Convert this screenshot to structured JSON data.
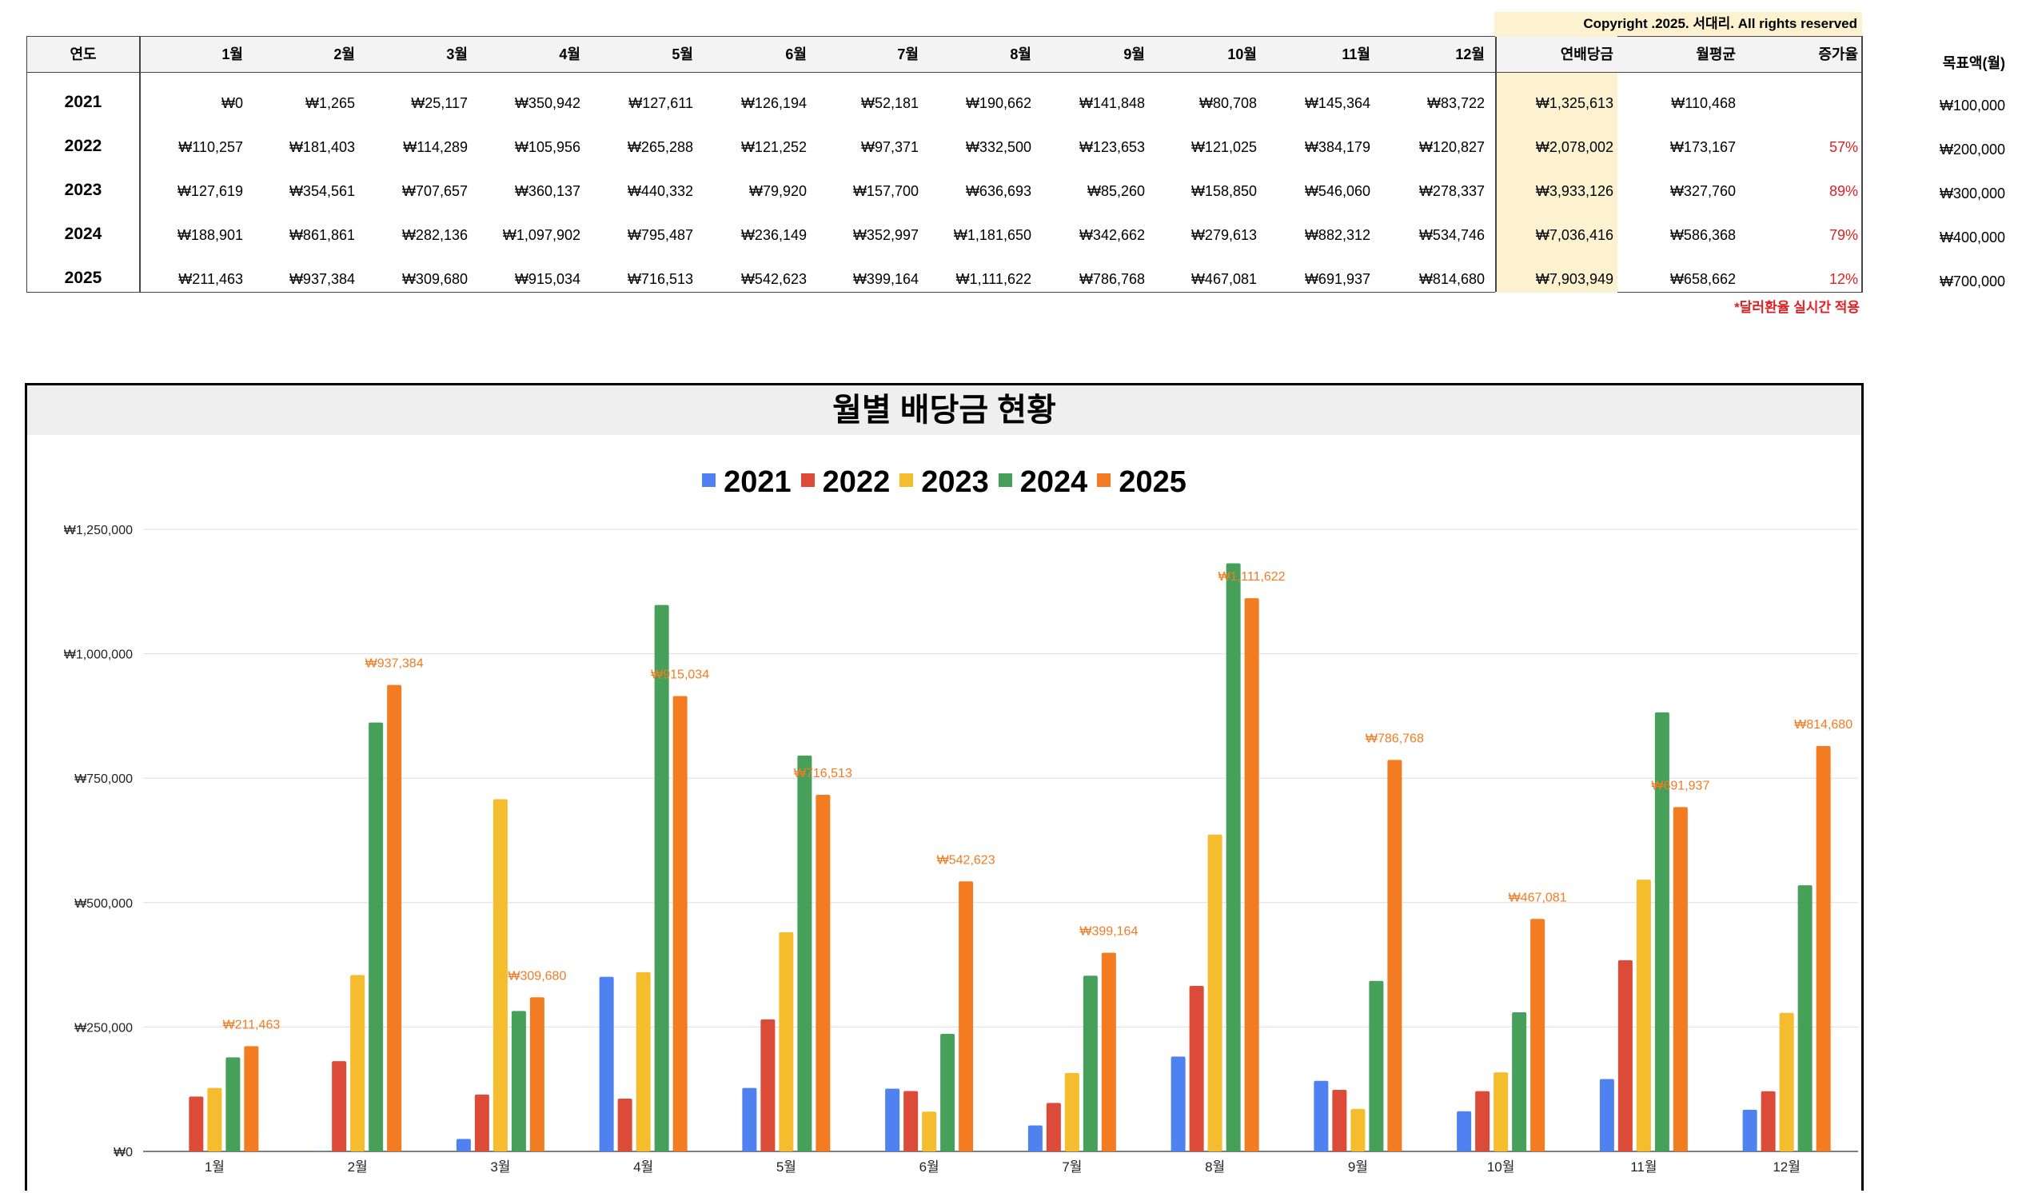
{
  "copyright": "Copyright .2025. 서대리. All rights reserved",
  "table": {
    "headers": [
      "연도",
      "1월",
      "2월",
      "3월",
      "4월",
      "5월",
      "6월",
      "7월",
      "8월",
      "9월",
      "10월",
      "11월",
      "12월",
      "연배당금",
      "월평균",
      "증가율"
    ],
    "rows": [
      {
        "year": "2021",
        "months": [
          "₩0",
          "₩1,265",
          "₩25,117",
          "₩350,942",
          "₩127,611",
          "₩126,194",
          "₩52,181",
          "₩190,662",
          "₩141,848",
          "₩80,708",
          "₩145,364",
          "₩83,722"
        ],
        "annual": "₩1,325,613",
        "avg": "₩110,468",
        "growth": ""
      },
      {
        "year": "2022",
        "months": [
          "₩110,257",
          "₩181,403",
          "₩114,289",
          "₩105,956",
          "₩265,288",
          "₩121,252",
          "₩97,371",
          "₩332,500",
          "₩123,653",
          "₩121,025",
          "₩384,179",
          "₩120,827"
        ],
        "annual": "₩2,078,002",
        "avg": "₩173,167",
        "growth": "57%"
      },
      {
        "year": "2023",
        "months": [
          "₩127,619",
          "₩354,561",
          "₩707,657",
          "₩360,137",
          "₩440,332",
          "₩79,920",
          "₩157,700",
          "₩636,693",
          "₩85,260",
          "₩158,850",
          "₩546,060",
          "₩278,337"
        ],
        "annual": "₩3,933,126",
        "avg": "₩327,760",
        "growth": "89%"
      },
      {
        "year": "2024",
        "months": [
          "₩188,901",
          "₩861,861",
          "₩282,136",
          "₩1,097,902",
          "₩795,487",
          "₩236,149",
          "₩352,997",
          "₩1,181,650",
          "₩342,662",
          "₩279,613",
          "₩882,312",
          "₩534,746"
        ],
        "annual": "₩7,036,416",
        "avg": "₩586,368",
        "growth": "79%"
      },
      {
        "year": "2025",
        "months": [
          "₩211,463",
          "₩937,384",
          "₩309,680",
          "₩915,034",
          "₩716,513",
          "₩542,623",
          "₩399,164",
          "₩1,111,622",
          "₩786,768",
          "₩467,081",
          "₩691,937",
          "₩814,680"
        ],
        "annual": "₩7,903,949",
        "avg": "₩658,662",
        "growth": "12%"
      }
    ],
    "note": "*달러환율 실시간 적용"
  },
  "targets": {
    "label": "목표액(월)",
    "values": [
      "₩100,000",
      "₩200,000",
      "₩300,000",
      "₩400,000",
      "₩700,000"
    ]
  },
  "chart_title": "월별 배당금 현황",
  "chart_data": {
    "type": "bar",
    "categories": [
      "1월",
      "2월",
      "3월",
      "4월",
      "5월",
      "6월",
      "7월",
      "8월",
      "9월",
      "10월",
      "11월",
      "12월"
    ],
    "series": [
      {
        "name": "2021",
        "color": "#4f81f0",
        "values": [
          0,
          1265,
          25117,
          350942,
          127611,
          126194,
          52181,
          190662,
          141848,
          80708,
          145364,
          83722
        ]
      },
      {
        "name": "2022",
        "color": "#dc4a38",
        "values": [
          110257,
          181403,
          114289,
          105956,
          265288,
          121252,
          97371,
          332500,
          123653,
          121025,
          384179,
          120827
        ]
      },
      {
        "name": "2023",
        "color": "#f5bd2e",
        "values": [
          127619,
          354561,
          707657,
          360137,
          440332,
          79920,
          157700,
          636693,
          85260,
          158850,
          546060,
          278337
        ]
      },
      {
        "name": "2024",
        "color": "#46a05a",
        "values": [
          188901,
          861861,
          282136,
          1097902,
          795487,
          236149,
          352997,
          1181650,
          342662,
          279613,
          882312,
          534746
        ]
      },
      {
        "name": "2025",
        "color": "#f37b22",
        "values": [
          211463,
          937384,
          309680,
          915034,
          716513,
          542623,
          399164,
          1111622,
          786768,
          467081,
          691937,
          814680
        ]
      }
    ],
    "data_labels": [
      "₩211,463",
      "₩937,384",
      "₩309,680",
      "₩915,034",
      "₩716,513",
      "₩542,623",
      "₩399,164",
      "₩1,111,622",
      "₩786,768",
      "₩467,081",
      "₩691,937",
      "₩814,680"
    ],
    "yticks": [
      0,
      250000,
      500000,
      750000,
      1000000,
      1250000
    ],
    "ytick_labels": [
      "₩0",
      "₩250,000",
      "₩500,000",
      "₩750,000",
      "₩1,000,000",
      "₩1,250,000"
    ],
    "ylim": [
      0,
      1250000
    ],
    "grid": true,
    "legend": "top-center"
  }
}
